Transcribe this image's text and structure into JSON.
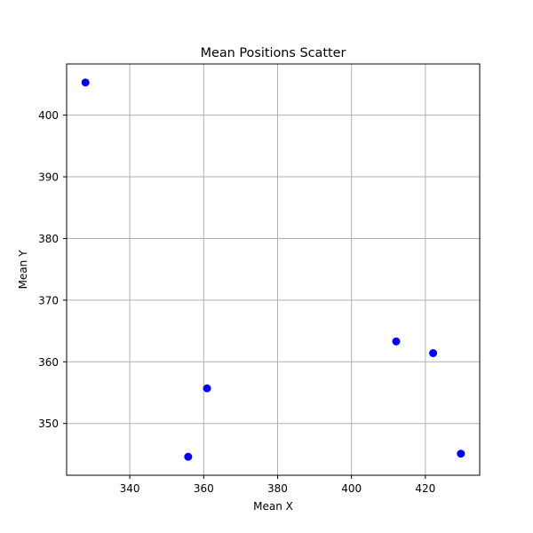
{
  "chart_data": {
    "type": "scatter",
    "title": "Mean Positions Scatter",
    "xlabel": "Mean X",
    "ylabel": "Mean Y",
    "xlim": [
      322.9,
      434.7
    ],
    "ylim": [
      341.6,
      408.3
    ],
    "xticks": [
      340,
      360,
      380,
      400,
      420
    ],
    "yticks": [
      350,
      360,
      370,
      380,
      390,
      400
    ],
    "grid": true,
    "legend": "none",
    "marker_color": "#0000ff",
    "points": [
      {
        "x": 328.0,
        "y": 405.3
      },
      {
        "x": 355.8,
        "y": 344.6
      },
      {
        "x": 360.9,
        "y": 355.7
      },
      {
        "x": 412.1,
        "y": 363.3
      },
      {
        "x": 422.1,
        "y": 361.4
      },
      {
        "x": 429.6,
        "y": 345.1
      }
    ]
  }
}
